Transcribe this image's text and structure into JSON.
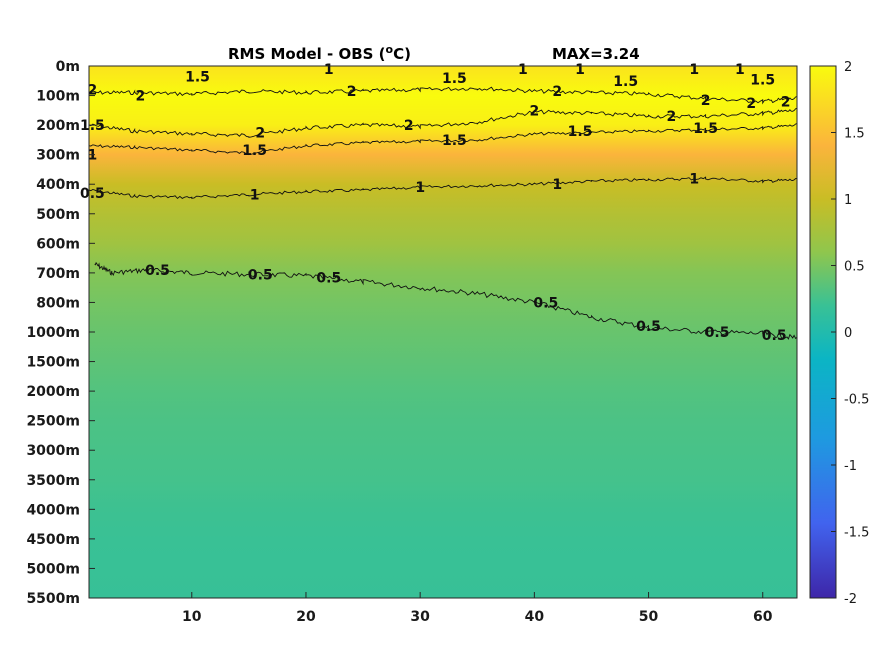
{
  "chart_data": {
    "type": "heatmap",
    "title": "RMS Model - OBS (°C)",
    "title_main": "RMS Model - OBS (",
    "title_sup": "o",
    "title_end": "C)",
    "annotation": "MAX=3.24",
    "x_ticks": [
      10,
      20,
      30,
      40,
      50,
      60
    ],
    "x_range": [
      1,
      63
    ],
    "y_ticks": [
      "0m",
      "100m",
      "200m",
      "300m",
      "400m",
      "500m",
      "600m",
      "700m",
      "800m",
      "1000m",
      "1500m",
      "2000m",
      "2500m",
      "3000m",
      "3500m",
      "4000m",
      "4500m",
      "5000m",
      "5500m"
    ],
    "colorbar": {
      "range": [
        -2,
        2
      ],
      "ticks": [
        "2",
        "1.5",
        "1",
        "0.5",
        "0",
        "-0.5",
        "-1",
        "-1.5",
        "-2"
      ],
      "colormap": "parula"
    },
    "depth_profile": [
      {
        "level": 0,
        "value": 1.8
      },
      {
        "level": 1,
        "value": 2.0
      },
      {
        "level": 2,
        "value": 1.9
      },
      {
        "level": 3,
        "value": 1.4
      },
      {
        "level": 4,
        "value": 1.0
      },
      {
        "level": 5,
        "value": 0.85
      },
      {
        "level": 6,
        "value": 0.72
      },
      {
        "level": 7,
        "value": 0.55
      },
      {
        "level": 8,
        "value": 0.48
      },
      {
        "level": 9,
        "value": 0.42
      },
      {
        "level": 10,
        "value": 0.37
      },
      {
        "level": 11,
        "value": 0.32
      },
      {
        "level": 12,
        "value": 0.29
      },
      {
        "level": 13,
        "value": 0.27
      },
      {
        "level": 14,
        "value": 0.25
      },
      {
        "level": 15,
        "value": 0.22
      },
      {
        "level": 16,
        "value": 0.2
      },
      {
        "level": 17,
        "value": 0.19
      },
      {
        "level": 18,
        "value": 0.18
      }
    ],
    "contour_labels": [
      {
        "text": "1.5",
        "x": 10.5,
        "level": 0.35
      },
      {
        "text": "1",
        "x": 22,
        "level": 0.1
      },
      {
        "text": "1.5",
        "x": 33,
        "level": 0.4
      },
      {
        "text": "1",
        "x": 39,
        "level": 0.1
      },
      {
        "text": "1",
        "x": 44,
        "level": 0.1
      },
      {
        "text": "1.5",
        "x": 48,
        "level": 0.5
      },
      {
        "text": "1",
        "x": 54,
        "level": 0.1
      },
      {
        "text": "1",
        "x": 58,
        "level": 0.1
      },
      {
        "text": "1.5",
        "x": 60,
        "level": 0.45
      },
      {
        "text": "2",
        "x": 5.5,
        "level": 1.0
      },
      {
        "text": "2",
        "x": 24,
        "level": 0.85
      },
      {
        "text": "2",
        "x": 42,
        "level": 0.85
      },
      {
        "text": "2",
        "x": 55,
        "level": 1.15
      },
      {
        "text": "2",
        "x": 59,
        "level": 1.25
      },
      {
        "text": "2",
        "x": 62,
        "level": 1.2
      },
      {
        "text": "2",
        "x": 16,
        "level": 2.25
      },
      {
        "text": "2",
        "x": 29,
        "level": 2.0
      },
      {
        "text": "2",
        "x": 40,
        "level": 1.5
      },
      {
        "text": "2",
        "x": 52,
        "level": 1.7
      },
      {
        "text": "1.5",
        "x": 15.5,
        "level": 2.85
      },
      {
        "text": "1.5",
        "x": 33,
        "level": 2.5
      },
      {
        "text": "1.5",
        "x": 44,
        "level": 2.2
      },
      {
        "text": "1.5",
        "x": 55,
        "level": 2.1
      },
      {
        "text": "1",
        "x": 15.5,
        "level": 4.35
      },
      {
        "text": "1",
        "x": 30,
        "level": 4.1
      },
      {
        "text": "1",
        "x": 42,
        "level": 4.0
      },
      {
        "text": "1",
        "x": 54,
        "level": 3.8
      },
      {
        "text": "0.5",
        "x": 7,
        "level": 6.9
      },
      {
        "text": "0.5",
        "x": 16,
        "level": 7.05
      },
      {
        "text": "0.5",
        "x": 22,
        "level": 7.15
      },
      {
        "text": "0.5",
        "x": 41,
        "level": 8.0
      },
      {
        "text": "0.5",
        "x": 50,
        "level": 8.8
      },
      {
        "text": "0.5",
        "x": 56,
        "level": 9.0
      },
      {
        "text": "0.5",
        "x": 61,
        "level": 9.1
      },
      {
        "text": "2",
        "x": 1.3,
        "level": 0.8
      },
      {
        "text": "1.5",
        "x": 1.3,
        "level": 2.0
      },
      {
        "text": "1",
        "x": 1.3,
        "level": 3.0
      },
      {
        "text": "0.5",
        "x": 1.3,
        "level": 4.3
      }
    ],
    "contour_1_5": [
      [
        1,
        2.7
      ],
      [
        5,
        2.75
      ],
      [
        10,
        2.85
      ],
      [
        15,
        2.95
      ],
      [
        20,
        2.7
      ],
      [
        25,
        2.6
      ],
      [
        30,
        2.55
      ],
      [
        35,
        2.5
      ],
      [
        40,
        2.3
      ],
      [
        45,
        2.25
      ],
      [
        50,
        2.2
      ],
      [
        55,
        2.15
      ],
      [
        60,
        2.1
      ],
      [
        63,
        2.0
      ]
    ],
    "contour_1": [
      [
        1,
        4.2
      ],
      [
        5,
        4.4
      ],
      [
        10,
        4.45
      ],
      [
        15,
        4.35
      ],
      [
        20,
        4.25
      ],
      [
        25,
        4.2
      ],
      [
        30,
        4.1
      ],
      [
        35,
        4.05
      ],
      [
        40,
        4.0
      ],
      [
        45,
        3.9
      ],
      [
        50,
        3.85
      ],
      [
        55,
        3.8
      ],
      [
        60,
        3.9
      ],
      [
        63,
        3.85
      ]
    ],
    "contour_0_5": [
      [
        1.5,
        6.7
      ],
      [
        3,
        7.0
      ],
      [
        6,
        6.9
      ],
      [
        10,
        7.0
      ],
      [
        15,
        7.05
      ],
      [
        20,
        7.1
      ],
      [
        25,
        7.3
      ],
      [
        30,
        7.5
      ],
      [
        35,
        7.7
      ],
      [
        40,
        8.0
      ],
      [
        45,
        8.5
      ],
      [
        50,
        8.85
      ],
      [
        55,
        9.0
      ],
      [
        60,
        9.05
      ],
      [
        63,
        9.2
      ]
    ],
    "contour_2_upper": [
      [
        1,
        0.9
      ],
      [
        5,
        0.9
      ],
      [
        10,
        0.95
      ],
      [
        15,
        0.85
      ],
      [
        20,
        0.9
      ],
      [
        25,
        0.85
      ],
      [
        30,
        0.8
      ],
      [
        35,
        0.75
      ],
      [
        40,
        0.85
      ],
      [
        45,
        0.9
      ],
      [
        50,
        0.95
      ],
      [
        55,
        1.1
      ],
      [
        60,
        1.2
      ],
      [
        63,
        1.1
      ]
    ],
    "contour_2_lower": [
      [
        1,
        2.0
      ],
      [
        5,
        2.2
      ],
      [
        10,
        2.3
      ],
      [
        15,
        2.35
      ],
      [
        20,
        2.1
      ],
      [
        25,
        2.0
      ],
      [
        30,
        2.05
      ],
      [
        35,
        1.9
      ],
      [
        40,
        1.55
      ],
      [
        45,
        1.6
      ],
      [
        50,
        1.7
      ],
      [
        55,
        1.7
      ],
      [
        60,
        1.6
      ],
      [
        63,
        1.5
      ]
    ]
  }
}
